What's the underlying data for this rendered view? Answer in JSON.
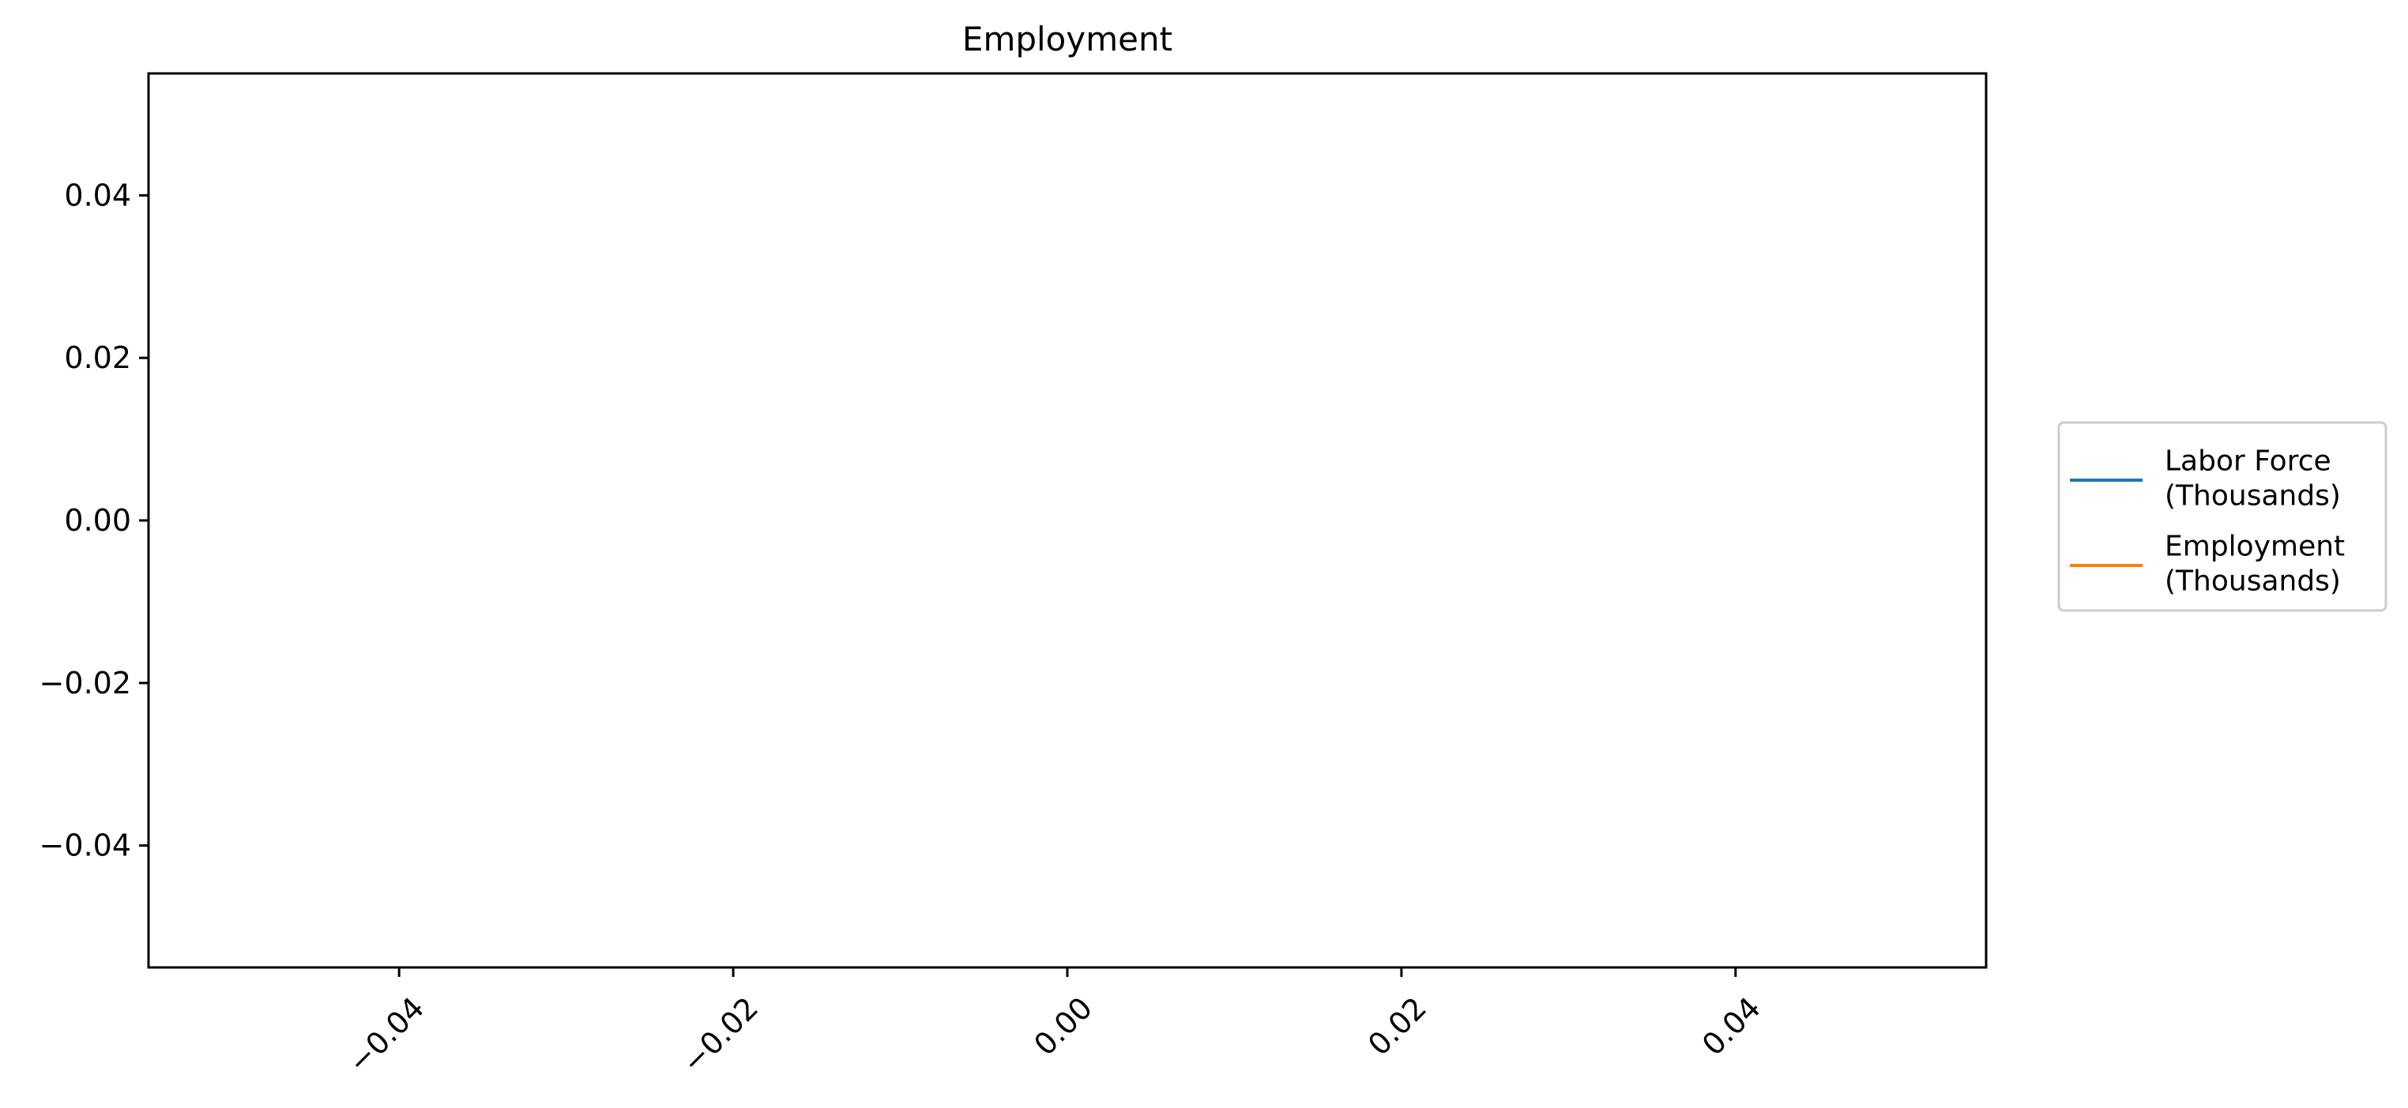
{
  "chart_data": {
    "type": "line",
    "title": "Employment",
    "xlabel": "",
    "ylabel": "",
    "xlim": [
      -0.055,
      0.055
    ],
    "ylim": [
      -0.055,
      0.055
    ],
    "x_ticks": [
      -0.04,
      -0.02,
      0.0,
      0.02,
      0.04
    ],
    "x_tick_labels": [
      "−0.04",
      "−0.02",
      "0.00",
      "0.02",
      "0.04"
    ],
    "y_ticks": [
      0.04,
      0.02,
      0.0,
      -0.02,
      -0.04
    ],
    "y_tick_labels": [
      "0.04",
      "0.02",
      "0.00",
      "−0.02",
      "−0.04"
    ],
    "x_tick_rotation": 45,
    "grid": false,
    "legend_position": "right, outside plot area",
    "series": [
      {
        "name": "Labor Force (Thousands)",
        "label_lines": [
          "Labor Force",
          "(Thousands)"
        ],
        "color": "#1f77b4",
        "x": [],
        "y": []
      },
      {
        "name": "Employment (Thousands)",
        "label_lines": [
          "Employment",
          "(Thousands)"
        ],
        "color": "#ff7f0e",
        "x": [],
        "y": []
      }
    ]
  }
}
